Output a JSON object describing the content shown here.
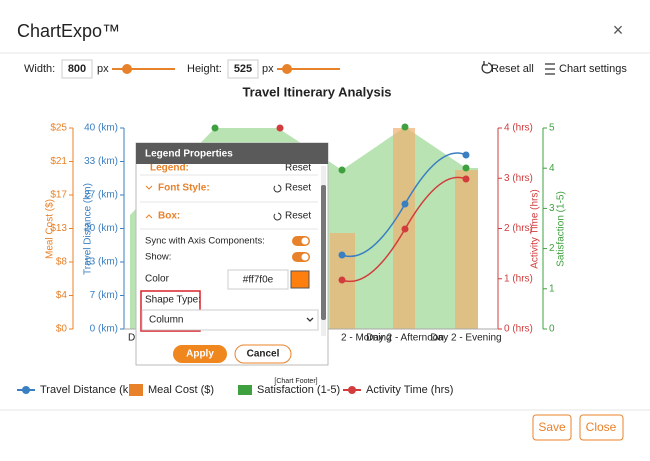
{
  "header": {
    "title": "ChartExpo™",
    "close": "×"
  },
  "toolbar": {
    "width_label": "Width:",
    "width_value": "800",
    "width_unit": "px",
    "height_label": "Height:",
    "height_value": "525",
    "height_unit": "px",
    "reset_all": "Reset all",
    "chart_settings": "Chart settings"
  },
  "chart": {
    "title": "Travel Itinerary Analysis",
    "meal_axis": {
      "title": "Meal Cost ($)",
      "ticks": [
        "$25",
        "$21",
        "$17",
        "$13",
        "$8",
        "$4",
        "$0"
      ]
    },
    "distance_axis": {
      "title": "Travel Distance (km)",
      "ticks": [
        "40 (km)",
        "33 (km)",
        "27 (km)",
        "20 (km)",
        "13 (km)",
        "7 (km)",
        "0 (km)"
      ]
    },
    "activity_axis": {
      "title": "Activity Time (hrs)",
      "ticks": [
        "4 (hrs)",
        "3 (hrs)",
        "2 (hrs)",
        "1 (hrs)",
        "0 (hrs)"
      ]
    },
    "satisfaction_axis": {
      "title": "Satisfaction (1-5)",
      "ticks": [
        "5",
        "4",
        "3",
        "2",
        "1",
        "0"
      ]
    },
    "categories": [
      "Da",
      "2 - Morning",
      "Day 2 - Afternoon",
      "Day 2 - Evening"
    ],
    "footer": "[Chart Footer]",
    "legend": [
      "Travel Distance (km)",
      "Meal Cost ($)",
      "Satisfaction (1-5)",
      "Activity Time (hrs)"
    ]
  },
  "dialog": {
    "title": "Legend Properties",
    "legend_row": "Legend:",
    "font_style": "Font Style:",
    "box": "Box:",
    "reset": "Reset",
    "sync": "Sync with Axis Components:",
    "show": "Show:",
    "color_label": "Color",
    "color_value": "#ff7f0e",
    "shape_label": "Shape Type:",
    "shape_value": "Column",
    "apply": "Apply",
    "cancel": "Cancel"
  },
  "footer": {
    "save": "Save",
    "close": "Close"
  }
}
